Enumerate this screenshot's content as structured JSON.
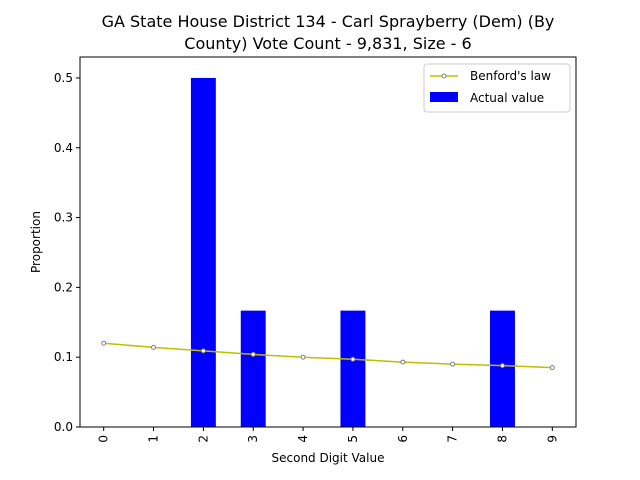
{
  "chart_data": {
    "type": "bar",
    "title_line1": "GA State House District 134 - Carl Sprayberry (Dem) (By",
    "title_line2": "County) Vote Count - 9,831, Size - 6",
    "xlabel": "Second Digit Value",
    "ylabel": "Proportion",
    "categories": [
      "0",
      "1",
      "2",
      "3",
      "4",
      "5",
      "6",
      "7",
      "8",
      "9"
    ],
    "ylim": [
      0,
      0.53
    ],
    "yticks": [
      "0.0",
      "0.1",
      "0.2",
      "0.3",
      "0.4",
      "0.5"
    ],
    "legend_position": "top-right",
    "series": [
      {
        "name": "Benford's law",
        "kind": "line",
        "color": "#bfbf00",
        "values": [
          0.12,
          0.114,
          0.109,
          0.104,
          0.1,
          0.097,
          0.093,
          0.09,
          0.088,
          0.085
        ]
      },
      {
        "name": "Actual value",
        "kind": "bar",
        "color": "#0000ff",
        "values": [
          0,
          0,
          0.5,
          0.1667,
          0,
          0.1667,
          0,
          0,
          0.1667,
          0
        ]
      }
    ]
  }
}
